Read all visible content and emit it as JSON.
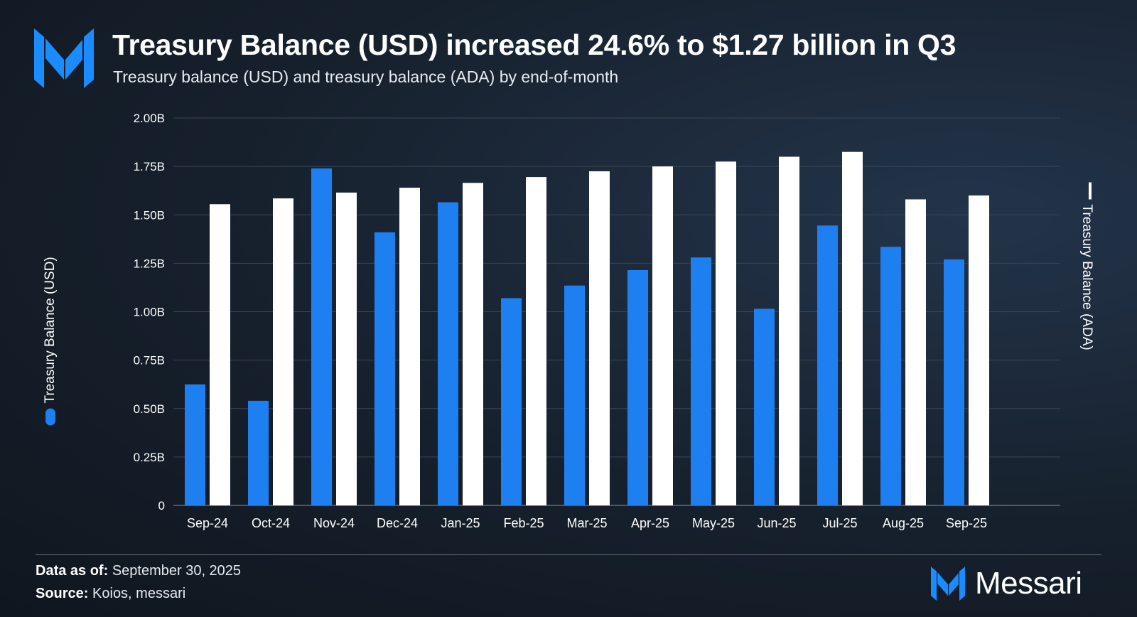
{
  "header": {
    "title": "Treasury Balance (USD) increased 24.6% to $1.27 billion in Q3",
    "subtitle": "Treasury balance (USD) and treasury balance (ADA) by end-of-month"
  },
  "footer": {
    "data_as_of_label": "Data as of:",
    "data_as_of_value": "September 30, 2025",
    "source_label": "Source:",
    "source_value": "Koios, messari",
    "brand": "Messari"
  },
  "colors": {
    "usd": "#1e7ff0",
    "ada": "#ffffff",
    "grid": "#3a4654",
    "text": "#ffffff",
    "brand_blue": "#1a8cff"
  },
  "icons": [
    "messari-logo-icon",
    "legend-usd-marker-icon",
    "legend-ada-marker-icon"
  ],
  "chart_data": {
    "type": "bar",
    "title": "Treasury Balance (USD) increased 24.6% to $1.27 billion in Q3",
    "subtitle": "Treasury balance (USD) and treasury balance (ADA) by end-of-month",
    "categories": [
      "Sep-24",
      "Oct-24",
      "Nov-24",
      "Dec-24",
      "Jan-25",
      "Feb-25",
      "Mar-25",
      "Apr-25",
      "May-25",
      "Jun-25",
      "Jul-25",
      "Aug-25",
      "Sep-25"
    ],
    "series": [
      {
        "name": "Treasury Balance (USD)",
        "axis": "left",
        "values": [
          0.625,
          0.54,
          1.74,
          1.41,
          1.565,
          1.07,
          1.135,
          1.215,
          1.28,
          1.015,
          1.445,
          1.335,
          1.27
        ]
      },
      {
        "name": "Treasury Balance (ADA)",
        "axis": "right",
        "values": [
          1.555,
          1.585,
          1.615,
          1.64,
          1.665,
          1.695,
          1.725,
          1.75,
          1.775,
          1.8,
          1.825,
          1.58,
          1.6
        ]
      }
    ],
    "ylabel": "Treasury Balance (USD)",
    "y2label": "Treasury Balance (ADA)",
    "ylim": [
      0,
      2
    ],
    "yticks": [
      0,
      0.25,
      0.5,
      0.75,
      1.0,
      1.25,
      1.5,
      1.75,
      2.0
    ],
    "ytick_labels": [
      "0",
      "0.25B",
      "0.50B",
      "0.75B",
      "1.00B",
      "1.25B",
      "1.50B",
      "1.75B",
      "2.00B"
    ],
    "grid": true,
    "legend": "axis-labels"
  }
}
